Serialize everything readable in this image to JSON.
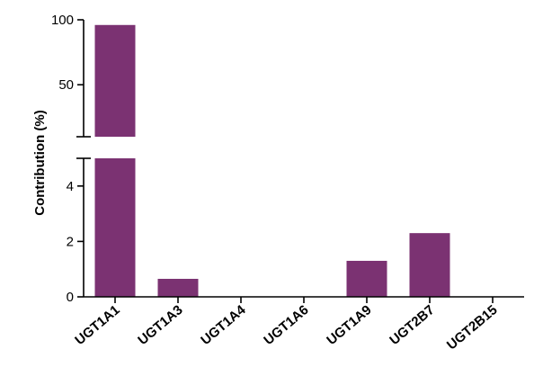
{
  "chart_data": {
    "type": "bar",
    "categories": [
      "UGT1A1",
      "UGT1A3",
      "UGT1A4",
      "UGT1A6",
      "UGT1A9",
      "UGT2B7",
      "UGT2B15"
    ],
    "values": [
      96,
      0.65,
      0,
      0,
      1.3,
      2.3,
      0
    ],
    "xlabel": "",
    "ylabel": "Contribution (%)",
    "y_axis_break": {
      "lower_segment": {
        "range": [
          0,
          5
        ],
        "ticks": [
          0,
          2,
          4
        ]
      },
      "upper_segment": {
        "range": [
          10,
          100
        ],
        "ticks": [
          50,
          100
        ]
      }
    },
    "bar_color": "#7B3272",
    "grid": false,
    "legend": "none"
  }
}
